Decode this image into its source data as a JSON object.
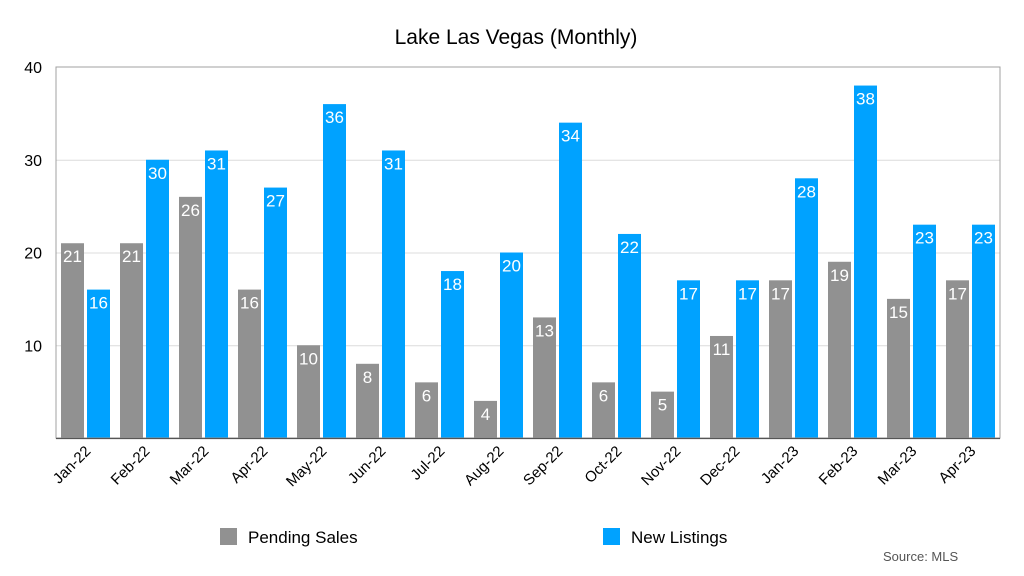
{
  "chart_data": {
    "type": "bar",
    "title": "Lake Las Vegas (Monthly)",
    "xlabel": "",
    "ylabel": "",
    "ylim": [
      0,
      40
    ],
    "yticks": [
      10,
      20,
      30,
      40
    ],
    "grid": true,
    "categories": [
      "Jan-22",
      "Feb-22",
      "Mar-22",
      "Apr-22",
      "May-22",
      "Jun-22",
      "Jul-22",
      "Aug-22",
      "Sep-22",
      "Oct-22",
      "Nov-22",
      "Dec-22",
      "Jan-23",
      "Feb-23",
      "Mar-23",
      "Apr-23"
    ],
    "series": [
      {
        "name": "Pending Sales",
        "color": "#919191",
        "values": [
          21,
          21,
          26,
          16,
          10,
          8,
          6,
          4,
          13,
          6,
          5,
          11,
          17,
          19,
          15,
          17
        ]
      },
      {
        "name": "New Listings",
        "color": "#00a2ff",
        "values": [
          16,
          30,
          31,
          27,
          36,
          31,
          18,
          20,
          34,
          22,
          17,
          17,
          28,
          38,
          23,
          23
        ]
      }
    ],
    "legend_position": "bottom",
    "source": "Source: MLS"
  }
}
